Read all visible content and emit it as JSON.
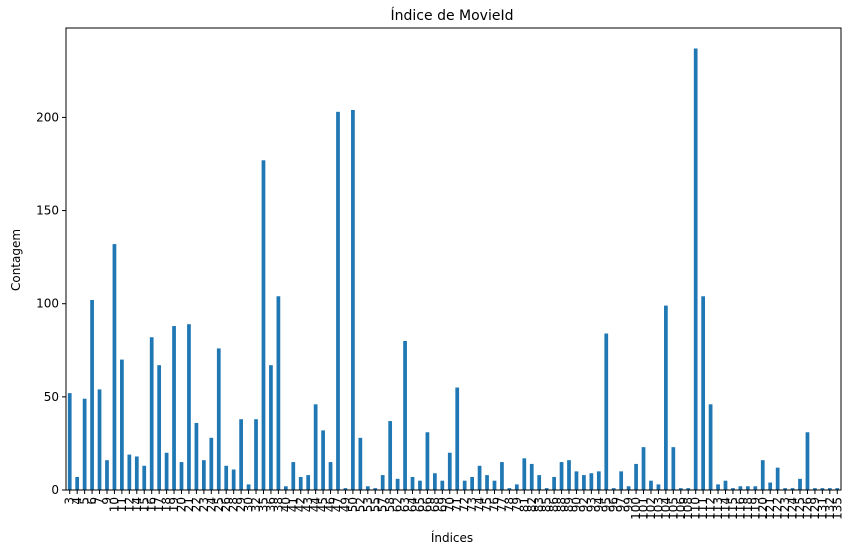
{
  "chart_data": {
    "type": "bar",
    "title": "Índice de MovieId",
    "xlabel": "Índices",
    "ylabel": "Contagem",
    "ylim": [
      0,
      248
    ],
    "yticks": [
      0,
      50,
      100,
      150,
      200
    ],
    "grid": false,
    "legend": "none",
    "bar_color": "#1f77b4",
    "categories": [
      "3",
      "4",
      "5",
      "6",
      "7",
      "9",
      "10",
      "11",
      "12",
      "14",
      "15",
      "16",
      "17",
      "18",
      "19",
      "20",
      "21",
      "22",
      "23",
      "24",
      "25",
      "26",
      "28",
      "29",
      "30",
      "32",
      "35",
      "36",
      "38",
      "40",
      "41",
      "42",
      "43",
      "44",
      "45",
      "46",
      "47",
      "49",
      "50",
      "52",
      "53",
      "55",
      "57",
      "58",
      "62",
      "63",
      "64",
      "65",
      "66",
      "68",
      "69",
      "70",
      "71",
      "72",
      "73",
      "74",
      "75",
      "76",
      "77",
      "78",
      "79",
      "81",
      "82",
      "83",
      "85",
      "86",
      "88",
      "89",
      "90",
      "92",
      "93",
      "94",
      "95",
      "96",
      "97",
      "99",
      "100",
      "101",
      "102",
      "103",
      "104",
      "105",
      "106",
      "108",
      "110",
      "111",
      "112",
      "113",
      "114",
      "115",
      "116",
      "118",
      "119",
      "120",
      "121",
      "122",
      "123",
      "124",
      "125",
      "126",
      "129",
      "131",
      "132",
      "135"
    ],
    "values": [
      52,
      7,
      49,
      102,
      54,
      16,
      132,
      70,
      19,
      18,
      13,
      82,
      67,
      20,
      88,
      15,
      89,
      36,
      16,
      28,
      76,
      13,
      11,
      38,
      3,
      38,
      177,
      67,
      104,
      2,
      15,
      7,
      8,
      46,
      32,
      15,
      203,
      1,
      204,
      28,
      2,
      1,
      8,
      37,
      6,
      80,
      7,
      5,
      31,
      9,
      5,
      20,
      55,
      5,
      7,
      13,
      8,
      5,
      15,
      1,
      3,
      17,
      14,
      8,
      1,
      7,
      15,
      16,
      10,
      8,
      9,
      10,
      84,
      1,
      10,
      2,
      14,
      23,
      5,
      3,
      99,
      23,
      1,
      1,
      237,
      104,
      46,
      3,
      5,
      1,
      2,
      2,
      2,
      16,
      4,
      12,
      1,
      1,
      6,
      31,
      1,
      1,
      1,
      1
    ]
  }
}
